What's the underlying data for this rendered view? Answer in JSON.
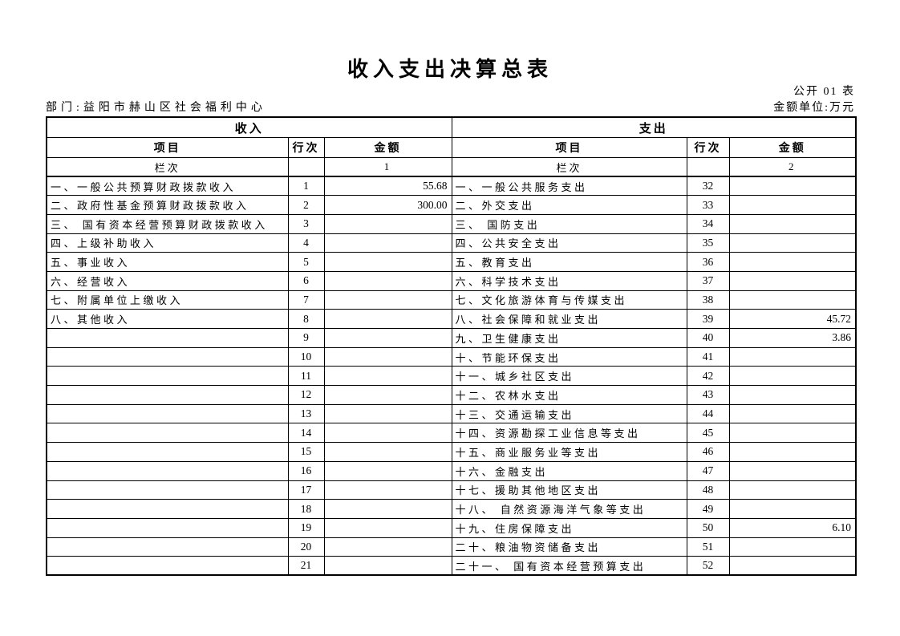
{
  "page": {
    "title": "收入支出决算总表",
    "doc_no": "公开 01 表",
    "department": "部门:益阳市赫山区社会福利中心",
    "amount_unit": "金额单位:万元"
  },
  "table": {
    "income": {
      "section_title": "收入",
      "columns": {
        "item": "项目",
        "line": "行次",
        "amount": "金额"
      },
      "lanci_label": "栏次",
      "lanci_amount_no": "1",
      "rows": [
        {
          "item": "一、一般公共预算财政拨款收入",
          "line": "1",
          "amount": "55.68"
        },
        {
          "item": "二、政府性基金预算财政拨款收入",
          "line": "2",
          "amount": "300.00"
        },
        {
          "item": "三、 国有资本经营预算财政拨款收入",
          "line": "3",
          "amount": ""
        },
        {
          "item": "四、上级补助收入",
          "line": "4",
          "amount": ""
        },
        {
          "item": "五、事业收入",
          "line": "5",
          "amount": ""
        },
        {
          "item": "六、经营收入",
          "line": "6",
          "amount": ""
        },
        {
          "item": "七、附属单位上缴收入",
          "line": "7",
          "amount": ""
        },
        {
          "item": "八、其他收入",
          "line": "8",
          "amount": ""
        },
        {
          "item": "",
          "line": "9",
          "amount": ""
        },
        {
          "item": "",
          "line": "10",
          "amount": ""
        },
        {
          "item": "",
          "line": "11",
          "amount": ""
        },
        {
          "item": "",
          "line": "12",
          "amount": ""
        },
        {
          "item": "",
          "line": "13",
          "amount": ""
        },
        {
          "item": "",
          "line": "14",
          "amount": ""
        },
        {
          "item": "",
          "line": "15",
          "amount": ""
        },
        {
          "item": "",
          "line": "16",
          "amount": ""
        },
        {
          "item": "",
          "line": "17",
          "amount": ""
        },
        {
          "item": "",
          "line": "18",
          "amount": ""
        },
        {
          "item": "",
          "line": "19",
          "amount": ""
        },
        {
          "item": "",
          "line": "20",
          "amount": ""
        },
        {
          "item": "",
          "line": "21",
          "amount": ""
        }
      ]
    },
    "expenditure": {
      "section_title": "支出",
      "columns": {
        "item": "项目",
        "line": "行次",
        "amount": "金额"
      },
      "lanci_label": "栏次",
      "lanci_amount_no": "2",
      "rows": [
        {
          "item": "一、一般公共服务支出",
          "line": "32",
          "amount": ""
        },
        {
          "item": "二、外交支出",
          "line": "33",
          "amount": ""
        },
        {
          "item": "三、 国防支出",
          "line": "34",
          "amount": ""
        },
        {
          "item": "四、公共安全支出",
          "line": "35",
          "amount": ""
        },
        {
          "item": "五、教育支出",
          "line": "36",
          "amount": ""
        },
        {
          "item": "六、科学技术支出",
          "line": "37",
          "amount": ""
        },
        {
          "item": "七、文化旅游体育与传媒支出",
          "line": "38",
          "amount": ""
        },
        {
          "item": "八、社会保障和就业支出",
          "line": "39",
          "amount": "45.72"
        },
        {
          "item": "九、卫生健康支出",
          "line": "40",
          "amount": "3.86"
        },
        {
          "item": "十、节能环保支出",
          "line": "41",
          "amount": ""
        },
        {
          "item": "十一、城乡社区支出",
          "line": "42",
          "amount": ""
        },
        {
          "item": "十二、农林水支出",
          "line": "43",
          "amount": ""
        },
        {
          "item": "十三、交通运输支出",
          "line": "44",
          "amount": ""
        },
        {
          "item": "十四、资源勘探工业信息等支出",
          "line": "45",
          "amount": ""
        },
        {
          "item": "十五、商业服务业等支出",
          "line": "46",
          "amount": ""
        },
        {
          "item": "十六、金融支出",
          "line": "47",
          "amount": ""
        },
        {
          "item": "十七、援助其他地区支出",
          "line": "48",
          "amount": ""
        },
        {
          "item": "十八、 自然资源海洋气象等支出",
          "line": "49",
          "amount": ""
        },
        {
          "item": "十九、住房保障支出",
          "line": "50",
          "amount": "6.10"
        },
        {
          "item": "二十、粮油物资储备支出",
          "line": "51",
          "amount": ""
        },
        {
          "item": "二十一、 国有资本经营预算支出",
          "line": "52",
          "amount": ""
        }
      ]
    }
  }
}
